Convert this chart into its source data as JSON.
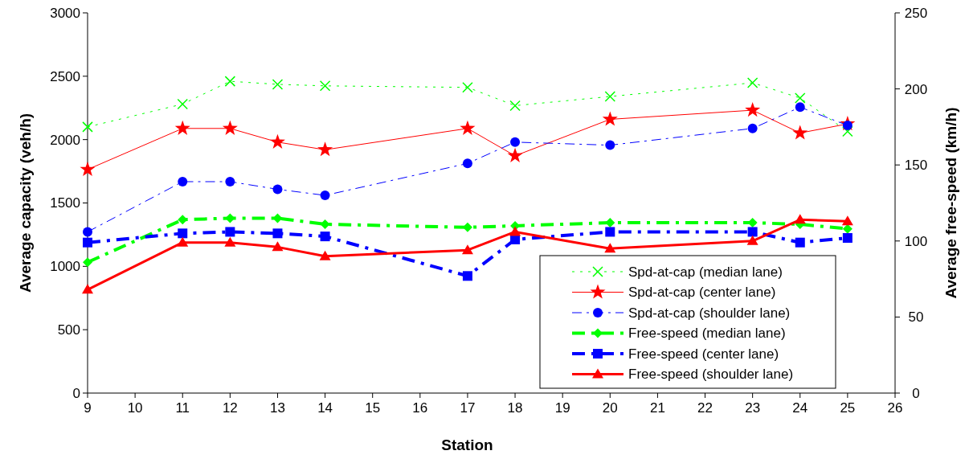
{
  "chart_data": {
    "type": "line",
    "xlabel": "Station",
    "ylabel": "Average capacity (veh/h)",
    "y2label": "Average free-speed (km/h)",
    "x": [
      9,
      11,
      12,
      13,
      14,
      17,
      18,
      20,
      23,
      24,
      25
    ],
    "xlim": [
      9,
      26
    ],
    "xticks": [
      9,
      10,
      11,
      12,
      13,
      14,
      15,
      16,
      17,
      18,
      19,
      20,
      21,
      22,
      23,
      24,
      25,
      26
    ],
    "ylim": [
      0,
      3000
    ],
    "yticks": [
      0,
      500,
      1000,
      1500,
      2000,
      2500,
      3000
    ],
    "y2lim": [
      0,
      250
    ],
    "y2ticks": [
      0,
      50,
      100,
      150,
      200,
      250
    ],
    "grid": false,
    "legend": "bottom right",
    "series": [
      {
        "name": "Spd-at-cap (median lane)",
        "color": "#00ff00",
        "axis": "y2",
        "marker": "cross",
        "line_style": "dotted",
        "values": [
          175,
          190,
          205,
          203,
          202,
          201,
          189,
          195,
          204,
          194,
          172
        ]
      },
      {
        "name": "Spd-at-cap (center lane)",
        "color": "#ff0000",
        "axis": "y2",
        "marker": "star",
        "line_style": "solid",
        "values": [
          147,
          174,
          174,
          165,
          160,
          174,
          156,
          180,
          186,
          171,
          177
        ]
      },
      {
        "name": "Spd-at-cap (shoulder lane)",
        "color": "#0000ff",
        "axis": "y2",
        "marker": "circle",
        "line_style": "dashed",
        "values": [
          106,
          139,
          139,
          134,
          130,
          151,
          165,
          163,
          174,
          188,
          176
        ]
      },
      {
        "name": "Free-speed (median lane)",
        "color": "#00ff00",
        "axis": "y2",
        "marker": "diamond",
        "line_style": "dashed",
        "values": [
          86,
          114,
          115,
          115,
          111,
          109,
          110,
          112,
          112,
          111,
          108
        ]
      },
      {
        "name": "Free-speed (center lane)",
        "color": "#0000ff",
        "axis": "y2",
        "marker": "square",
        "line_style": "dashed",
        "values": [
          99,
          105,
          106,
          105,
          103,
          77,
          101,
          106,
          106,
          99,
          102
        ]
      },
      {
        "name": "Free-speed (shoulder lane)",
        "color": "#ff0000",
        "axis": "y2",
        "marker": "triangle",
        "line_style": "solid",
        "values": [
          68,
          99,
          99,
          96,
          90,
          94,
          106,
          95,
          100,
          114,
          113
        ]
      }
    ]
  }
}
